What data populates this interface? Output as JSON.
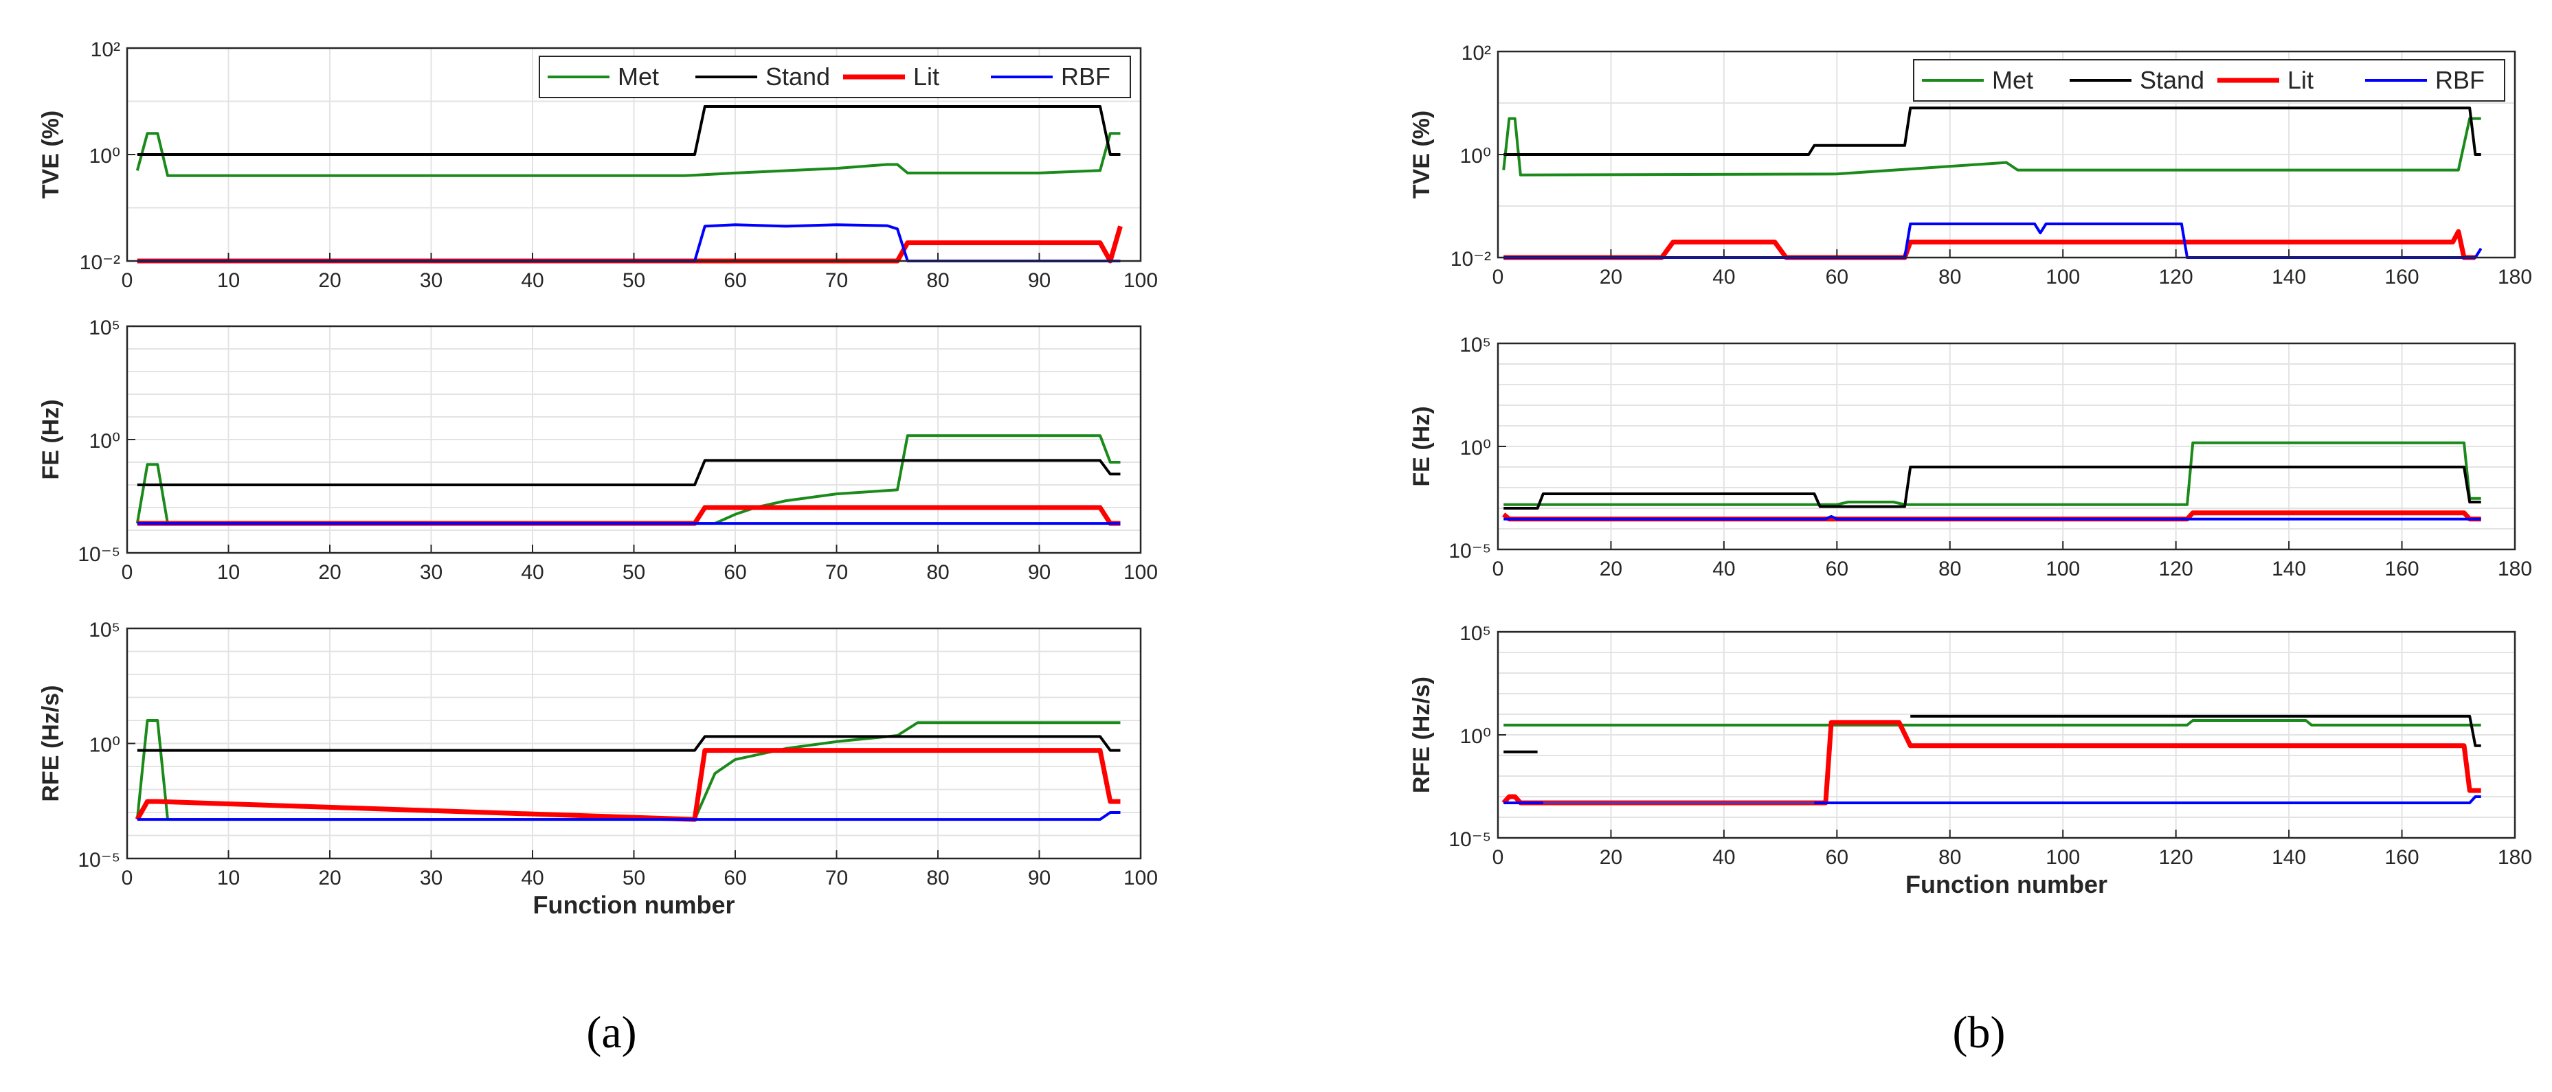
{
  "captions": [
    "(a)",
    "(b)"
  ],
  "legend_names": [
    "Met",
    "Stand",
    "Lit",
    "RBF"
  ],
  "series_colors": {
    "Met": "#1a8a1a",
    "Stand": "#000000",
    "Lit": "#ff0000",
    "RBF": "#0000ff"
  },
  "chart_data": [
    {
      "type": "line",
      "panel": "a",
      "title": "",
      "xlabel": "",
      "ylabel": "TVE (%)",
      "xlim": [
        0,
        100
      ],
      "xticks": [
        0,
        10,
        20,
        30,
        40,
        50,
        60,
        70,
        80,
        90,
        100
      ],
      "yscale": "log",
      "ylim_exp": [
        -2,
        2
      ],
      "yticks_exp": [
        -2,
        0,
        2
      ],
      "legend": "top-right",
      "grid": true,
      "series": [
        {
          "name": "Met",
          "points": [
            [
              1,
              0.5
            ],
            [
              2,
              2.5
            ],
            [
              3,
              2.5
            ],
            [
              4,
              0.4
            ],
            [
              8,
              0.4
            ],
            [
              55,
              0.4
            ],
            [
              60,
              0.45
            ],
            [
              70,
              0.55
            ],
            [
              75,
              0.65
            ],
            [
              76,
              0.65
            ],
            [
              77,
              0.45
            ],
            [
              90,
              0.45
            ],
            [
              96,
              0.5
            ],
            [
              97,
              2.5
            ],
            [
              98,
              2.5
            ]
          ]
        },
        {
          "name": "Stand",
          "points": [
            [
              1,
              1
            ],
            [
              56,
              1
            ],
            [
              57,
              8
            ],
            [
              96,
              8
            ],
            [
              97,
              1
            ],
            [
              98,
              1
            ]
          ]
        },
        {
          "name": "Lit",
          "points": [
            [
              1,
              0.01
            ],
            [
              56,
              0.01
            ],
            [
              76,
              0.01
            ],
            [
              77,
              0.022
            ],
            [
              96,
              0.022
            ],
            [
              97,
              0.01
            ],
            [
              98,
              0.045
            ]
          ]
        },
        {
          "name": "RBF",
          "points": [
            [
              1,
              0.01
            ],
            [
              56,
              0.01
            ],
            [
              57,
              0.045
            ],
            [
              60,
              0.048
            ],
            [
              65,
              0.045
            ],
            [
              70,
              0.048
            ],
            [
              75,
              0.046
            ],
            [
              76,
              0.04
            ],
            [
              77,
              0.01
            ],
            [
              98,
              0.01
            ]
          ]
        }
      ]
    },
    {
      "type": "line",
      "panel": "a",
      "title": "",
      "xlabel": "",
      "ylabel": "FE (Hz)",
      "xlim": [
        0,
        100
      ],
      "xticks": [
        0,
        10,
        20,
        30,
        40,
        50,
        60,
        70,
        80,
        90,
        100
      ],
      "yscale": "log",
      "ylim_exp": [
        -5,
        5
      ],
      "yticks_exp": [
        -5,
        0,
        5
      ],
      "grid": true,
      "series": [
        {
          "name": "Met",
          "points": [
            [
              1,
              0.0002
            ],
            [
              2,
              0.08
            ],
            [
              3,
              0.08
            ],
            [
              4,
              0.0002
            ],
            [
              58,
              0.0002
            ],
            [
              60,
              0.0005
            ],
            [
              62,
              0.001
            ],
            [
              65,
              0.002
            ],
            [
              70,
              0.004
            ],
            [
              76,
              0.006
            ],
            [
              77,
              1.5
            ],
            [
              96,
              1.5
            ],
            [
              97,
              0.1
            ],
            [
              98,
              0.1
            ]
          ]
        },
        {
          "name": "Stand",
          "points": [
            [
              1,
              0.01
            ],
            [
              56,
              0.01
            ],
            [
              57,
              0.12
            ],
            [
              96,
              0.12
            ],
            [
              97,
              0.03
            ],
            [
              98,
              0.03
            ]
          ]
        },
        {
          "name": "Lit",
          "points": [
            [
              1,
              0.0002
            ],
            [
              56,
              0.0002
            ],
            [
              57,
              0.001
            ],
            [
              96,
              0.001
            ],
            [
              97,
              0.0002
            ],
            [
              98,
              0.0002
            ]
          ]
        },
        {
          "name": "RBF",
          "points": [
            [
              1,
              0.0002
            ],
            [
              98,
              0.0002
            ]
          ]
        }
      ]
    },
    {
      "type": "line",
      "panel": "a",
      "title": "",
      "xlabel": "Function number",
      "ylabel": "RFE (Hz/s)",
      "xlim": [
        0,
        100
      ],
      "xticks": [
        0,
        10,
        20,
        30,
        40,
        50,
        60,
        70,
        80,
        90,
        100
      ],
      "yscale": "log",
      "ylim_exp": [
        -5,
        5
      ],
      "yticks_exp": [
        -5,
        0,
        5
      ],
      "grid": true,
      "series": [
        {
          "name": "Met",
          "points": [
            [
              1,
              0.0005
            ],
            [
              2,
              10
            ],
            [
              3,
              10
            ],
            [
              4,
              0.0005
            ],
            [
              56,
              0.0005
            ],
            [
              57,
              0.005
            ],
            [
              58,
              0.05
            ],
            [
              60,
              0.2
            ],
            [
              65,
              0.6
            ],
            [
              70,
              1.2
            ],
            [
              76,
              2.2
            ],
            [
              78,
              8
            ],
            [
              98,
              8
            ]
          ]
        },
        {
          "name": "Stand",
          "points": [
            [
              1,
              0.5
            ],
            [
              56,
              0.5
            ],
            [
              57,
              2
            ],
            [
              96,
              2
            ],
            [
              97,
              0.5
            ],
            [
              98,
              0.5
            ]
          ]
        },
        {
          "name": "Lit",
          "points": [
            [
              1,
              0.0005
            ],
            [
              2,
              0.003
            ],
            [
              3,
              0.003
            ],
            [
              56,
              0.0005
            ],
            [
              57,
              0.5
            ],
            [
              96,
              0.5
            ],
            [
              97,
              0.003
            ],
            [
              98,
              0.003
            ]
          ]
        },
        {
          "name": "RBF",
          "points": [
            [
              1,
              0.0005
            ],
            [
              96,
              0.0005
            ],
            [
              97,
              0.001
            ],
            [
              98,
              0.001
            ]
          ]
        }
      ]
    },
    {
      "type": "line",
      "panel": "b",
      "title": "",
      "xlabel": "",
      "ylabel": "TVE (%)",
      "xlim": [
        0,
        180
      ],
      "xticks": [
        0,
        20,
        40,
        60,
        80,
        100,
        120,
        140,
        160,
        180
      ],
      "yscale": "log",
      "ylim_exp": [
        -2,
        2
      ],
      "yticks_exp": [
        -2,
        0,
        2
      ],
      "legend": "top-right",
      "grid": true,
      "series": [
        {
          "name": "Met",
          "points": [
            [
              1,
              0.5
            ],
            [
              2,
              5
            ],
            [
              3,
              5
            ],
            [
              4,
              0.4
            ],
            [
              60,
              0.42
            ],
            [
              90,
              0.7
            ],
            [
              92,
              0.5
            ],
            [
              170,
              0.5
            ],
            [
              172,
              5
            ],
            [
              174,
              5
            ]
          ]
        },
        {
          "name": "Stand",
          "points": [
            [
              1,
              1
            ],
            [
              55,
              1
            ],
            [
              56,
              1.5
            ],
            [
              72,
              1.5
            ],
            [
              73,
              8
            ],
            [
              172,
              8
            ],
            [
              173,
              1
            ],
            [
              174,
              1
            ]
          ]
        },
        {
          "name": "Lit",
          "points": [
            [
              1,
              0.01
            ],
            [
              29,
              0.01
            ],
            [
              31,
              0.02
            ],
            [
              49,
              0.02
            ],
            [
              51,
              0.01
            ],
            [
              72,
              0.01
            ],
            [
              73,
              0.02
            ],
            [
              169,
              0.02
            ],
            [
              170,
              0.032
            ],
            [
              171,
              0.01
            ],
            [
              173,
              0.01
            ]
          ]
        },
        {
          "name": "RBF",
          "points": [
            [
              1,
              0.01
            ],
            [
              72,
              0.01
            ],
            [
              73,
              0.045
            ],
            [
              95,
              0.045
            ],
            [
              96,
              0.03
            ],
            [
              97,
              0.045
            ],
            [
              121,
              0.045
            ],
            [
              122,
              0.01
            ],
            [
              173,
              0.01
            ],
            [
              174,
              0.015
            ]
          ]
        }
      ]
    },
    {
      "type": "line",
      "panel": "b",
      "title": "",
      "xlabel": "",
      "ylabel": "FE (Hz)",
      "xlim": [
        0,
        180
      ],
      "xticks": [
        0,
        20,
        40,
        60,
        80,
        100,
        120,
        140,
        160,
        180
      ],
      "yscale": "log",
      "ylim_exp": [
        -5,
        5
      ],
      "yticks_exp": [
        -5,
        0,
        5
      ],
      "grid": true,
      "series": [
        {
          "name": "Met",
          "points": [
            [
              1,
              0.0015
            ],
            [
              60,
              0.0015
            ],
            [
              62,
              0.002
            ],
            [
              70,
              0.002
            ],
            [
              72,
              0.0015
            ],
            [
              122,
              0.0015
            ],
            [
              123,
              1.5
            ],
            [
              171,
              1.5
            ],
            [
              172,
              0.003
            ],
            [
              174,
              0.003
            ]
          ]
        },
        {
          "name": "Stand",
          "points": [
            [
              1,
              0.001
            ],
            [
              7,
              0.001
            ],
            [
              8,
              0.005
            ],
            [
              56,
              0.005
            ],
            [
              57,
              0.0012
            ],
            [
              72,
              0.0012
            ],
            [
              73,
              0.1
            ],
            [
              171,
              0.1
            ],
            [
              172,
              0.002
            ],
            [
              174,
              0.002
            ]
          ]
        },
        {
          "name": "Lit",
          "points": [
            [
              1,
              0.0005
            ],
            [
              2,
              0.0003
            ],
            [
              122,
              0.0003
            ],
            [
              123,
              0.0006
            ],
            [
              171,
              0.0006
            ],
            [
              172,
              0.0003
            ],
            [
              174,
              0.0003
            ]
          ]
        },
        {
          "name": "RBF",
          "points": [
            [
              1,
              0.0003
            ],
            [
              58,
              0.0003
            ],
            [
              59,
              0.0004
            ],
            [
              60,
              0.0003
            ],
            [
              174,
              0.0003
            ]
          ]
        }
      ]
    },
    {
      "type": "line",
      "panel": "b",
      "title": "",
      "xlabel": "Function number",
      "ylabel": "RFE (Hz/s)",
      "xlim": [
        0,
        180
      ],
      "xticks": [
        0,
        20,
        40,
        60,
        80,
        100,
        120,
        140,
        160,
        180
      ],
      "yscale": "log",
      "ylim_exp": [
        -5,
        5
      ],
      "yticks_exp": [
        -5,
        0,
        5
      ],
      "grid": true,
      "series": [
        {
          "name": "Met",
          "points": [
            [
              1,
              3
            ],
            [
              122,
              3
            ],
            [
              123,
              5
            ],
            [
              143,
              5
            ],
            [
              144,
              3
            ],
            [
              174,
              3
            ]
          ]
        },
        {
          "name": "Stand",
          "points": [
            [
              1,
              0.15
            ],
            [
              7,
              0.15
            ]
          ]
        },
        {
          "name": "Stand",
          "points": [
            [
              73,
              8
            ],
            [
              172,
              8
            ],
            [
              173,
              0.3
            ],
            [
              174,
              0.3
            ]
          ]
        },
        {
          "name": "Lit",
          "points": [
            [
              1,
              0.0005
            ],
            [
              2,
              0.001
            ],
            [
              3,
              0.001
            ],
            [
              4,
              0.0005
            ],
            [
              58,
              0.0005
            ],
            [
              59,
              4
            ],
            [
              71,
              4
            ],
            [
              73,
              0.3
            ],
            [
              171,
              0.3
            ],
            [
              172,
              0.002
            ],
            [
              174,
              0.002
            ]
          ]
        },
        {
          "name": "RBF",
          "points": [
            [
              1,
              0.0005
            ],
            [
              172,
              0.0005
            ],
            [
              173,
              0.001
            ],
            [
              174,
              0.001
            ]
          ]
        },
        {
          "name": "Met",
          "points": [
            [
              8,
              0.0005
            ],
            [
              56,
              0.0005
            ]
          ],
          "color": "#6a2fa0"
        }
      ]
    }
  ]
}
